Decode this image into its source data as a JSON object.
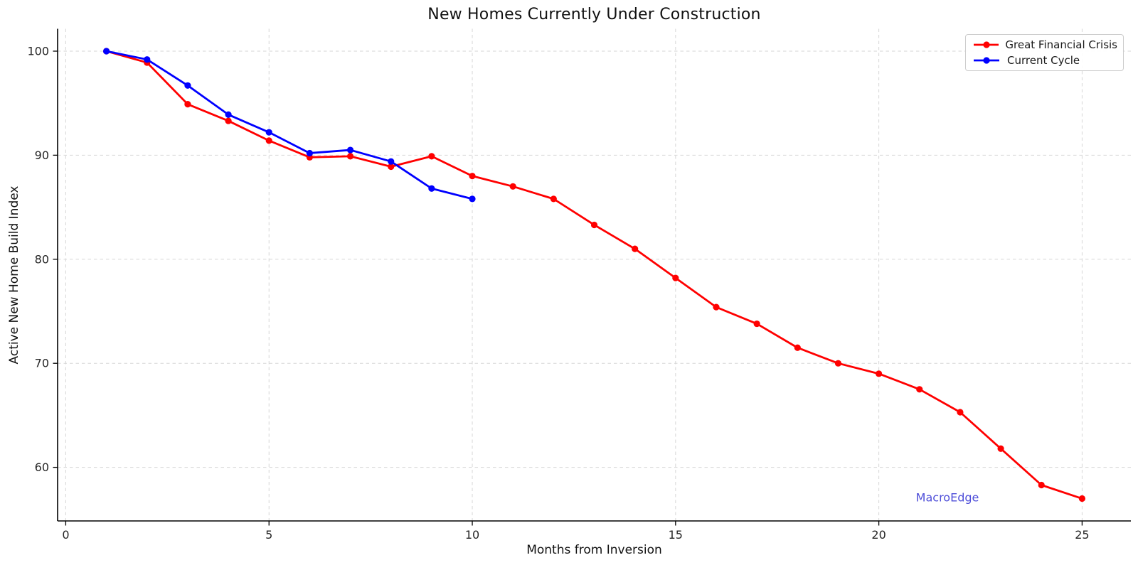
{
  "chart_data": {
    "type": "line",
    "title": "New Homes Currently Under Construction",
    "xlabel": "Months from Inversion",
    "ylabel": "Active New Home Build Index",
    "watermark": "MacroEdge",
    "xlim": [
      -0.2,
      26.2
    ],
    "ylim": [
      54.85,
      102.15
    ],
    "xticks": [
      0,
      5,
      10,
      15,
      20,
      25
    ],
    "yticks": [
      60,
      70,
      80,
      90,
      100
    ],
    "grid": true,
    "grid_style": "dashed",
    "legend_position": "upper right",
    "colors": {
      "red_series": "#ff0000",
      "blue_series": "#0000ff",
      "grid": "#d6d6d6",
      "spine": "#000000",
      "tick_label": "#262626",
      "watermark": "#4f4fd9",
      "legend_border": "#cccccc"
    },
    "series": [
      {
        "name": "Great Financial Crisis",
        "color": "#ff0000",
        "x": [
          1,
          2,
          3,
          4,
          5,
          6,
          7,
          8,
          9,
          10,
          11,
          12,
          13,
          14,
          15,
          16,
          17,
          18,
          19,
          20,
          21,
          22,
          23,
          24,
          25
        ],
        "values": [
          100.0,
          98.9,
          94.9,
          93.3,
          91.4,
          89.8,
          89.9,
          88.9,
          89.9,
          88.0,
          87.0,
          85.8,
          83.3,
          81.0,
          78.2,
          75.4,
          73.8,
          71.5,
          70.0,
          69.0,
          67.5,
          65.3,
          61.8,
          58.3,
          57.0
        ]
      },
      {
        "name": "Current Cycle",
        "color": "#0000ff",
        "x": [
          1,
          2,
          3,
          4,
          5,
          6,
          7,
          8,
          9,
          10
        ],
        "values": [
          100.0,
          99.2,
          96.7,
          93.9,
          92.2,
          90.2,
          90.5,
          89.4,
          86.8,
          85.8
        ]
      }
    ]
  }
}
